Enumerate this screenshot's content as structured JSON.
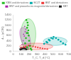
{
  "chart_data": {
    "type": "scatter",
    "xlabel": "T_C, T_d (°C)",
    "ylabel": "d₃₃ (pC/N)",
    "xlim": [
      0,
      700
    ],
    "ylim": [
      0,
      1400
    ],
    "xticks": [
      0,
      100,
      200,
      300,
      400,
      500,
      600,
      700
    ],
    "yticks": [
      0,
      200,
      400,
      600,
      800,
      1000,
      1200,
      1400
    ],
    "grid": false,
    "legend": "upper right",
    "series": [
      {
        "name": "KNN and derivatives",
        "color": "#22bb22",
        "marker": "circle",
        "x": [
          150,
          160,
          170,
          175,
          180,
          185,
          190,
          195,
          200,
          210,
          220,
          230,
          165,
          175,
          185
        ],
        "values": [
          300,
          500,
          700,
          900,
          1100,
          1000,
          800,
          600,
          400,
          200,
          100,
          50,
          1200,
          150,
          700
        ],
        "ellipse": {
          "cx": 190,
          "cy": 650,
          "w": 190,
          "h": 1200,
          "angle": 0
        }
      },
      {
        "name": "BCZT",
        "color": "#00aaaa",
        "marker": "circle",
        "x": [
          390,
          420,
          450,
          480,
          510,
          540,
          570,
          600,
          630,
          660,
          500,
          460,
          430
        ],
        "values": [
          280,
          360,
          440,
          510,
          550,
          500,
          440,
          370,
          300,
          250,
          480,
          410,
          330
        ],
        "ellipse": {
          "cx": 530,
          "cy": 380,
          "w": 300,
          "h": 320,
          "angle": 0
        }
      },
      {
        "name": "BNT and derivatives",
        "color": "#ee3333",
        "marker": "square",
        "x": [
          100,
          130,
          160,
          190,
          220,
          250,
          280,
          310,
          340,
          370,
          400,
          430,
          200,
          150
        ],
        "values": [
          130,
          160,
          190,
          210,
          200,
          185,
          160,
          140,
          120,
          105,
          90,
          80,
          220,
          150
        ],
        "ellipse": {
          "cx": 290,
          "cy": 180,
          "w": 420,
          "h": 260,
          "angle": 0
        }
      },
      {
        "name": "BNT and piezoelectric magnetite/derivatives",
        "color": "#aa22aa",
        "marker": "triangle",
        "x": [
          110,
          125,
          140,
          150,
          160,
          145,
          130
        ],
        "values": [
          250,
          400,
          580,
          750,
          850,
          950,
          650
        ],
        "ellipse": {
          "cx": 150,
          "cy": 520,
          "w": 120,
          "h": 780,
          "angle": 5
        }
      },
      {
        "name": "KBT",
        "color": "#222222",
        "marker": "circle",
        "x": [
          90,
          105,
          120,
          135,
          150,
          165,
          100
        ],
        "values": [
          60,
          80,
          100,
          110,
          90,
          70,
          120
        ],
        "ellipse": {
          "cx": 135,
          "cy": 90,
          "w": 120,
          "h": 110,
          "angle": 0
        }
      }
    ]
  }
}
